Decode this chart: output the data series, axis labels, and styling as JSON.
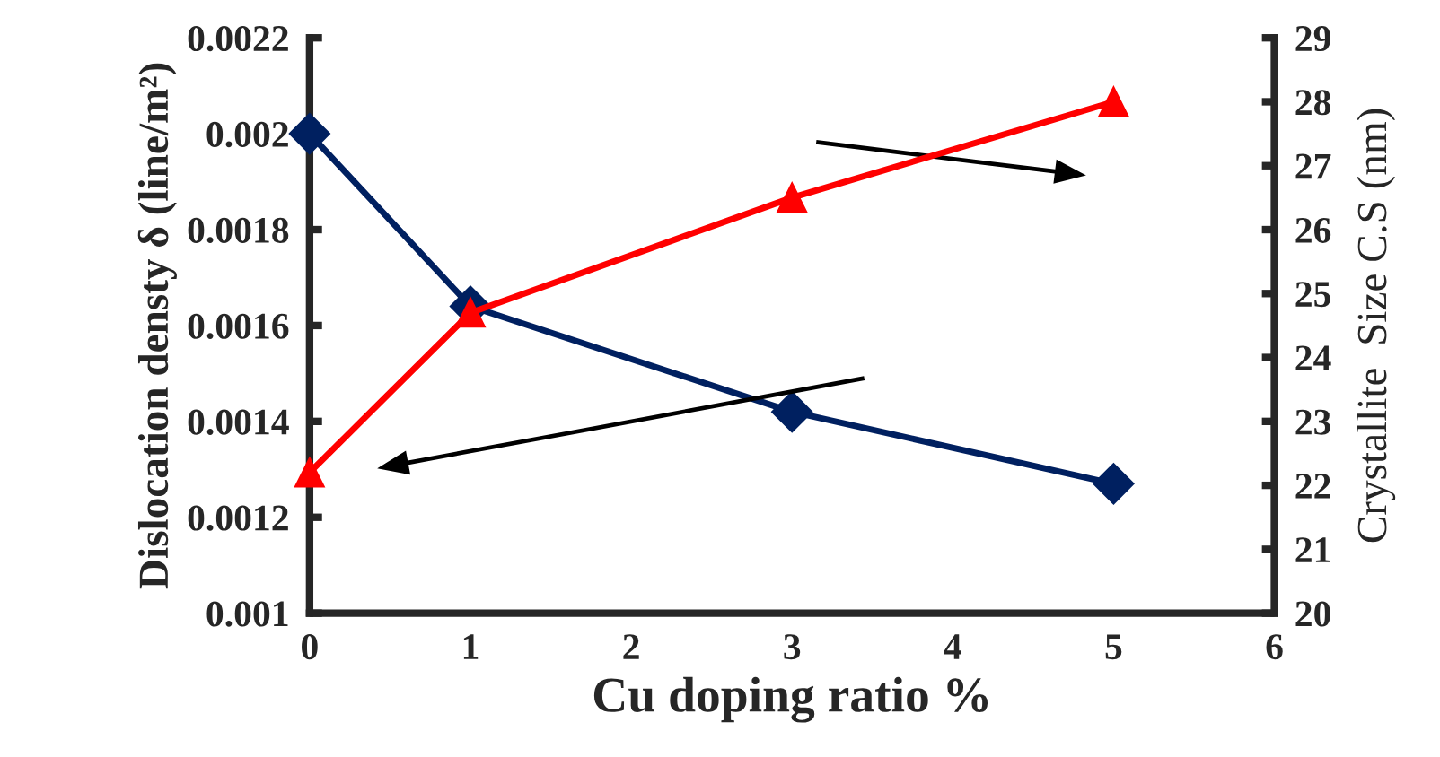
{
  "chart_data": {
    "type": "line",
    "xlabel": "Cu doping ratio %",
    "ylabel": "Dislocation densty δ (line/m²)",
    "y2label": "Crystallite  Size C.S (nm)",
    "x": [
      0,
      1,
      3,
      5
    ],
    "series": [
      {
        "color": "#002060",
        "values": [
          0.002,
          0.00164,
          0.00142,
          0.00127
        ],
        "marker": "diamond"
      },
      {
        "color": "#ff0000",
        "values": [
          22.2,
          24.7,
          26.5,
          28.0
        ],
        "marker": "triangle",
        "axis": "y2"
      }
    ],
    "xlim": [
      0,
      6
    ],
    "xticks": [
      0,
      1,
      2,
      3,
      4,
      5,
      6
    ],
    "ylim": [
      0.001,
      0.0022
    ],
    "yticks": [
      0.001,
      0.0012,
      0.0014,
      0.0016,
      0.0018,
      0.002,
      0.0022
    ],
    "y2lim": [
      20,
      29
    ],
    "y2ticks": [
      20,
      21,
      22,
      23,
      24,
      25,
      26,
      27,
      28,
      29
    ],
    "grid": false,
    "legend": false,
    "line_style": "solid"
  }
}
